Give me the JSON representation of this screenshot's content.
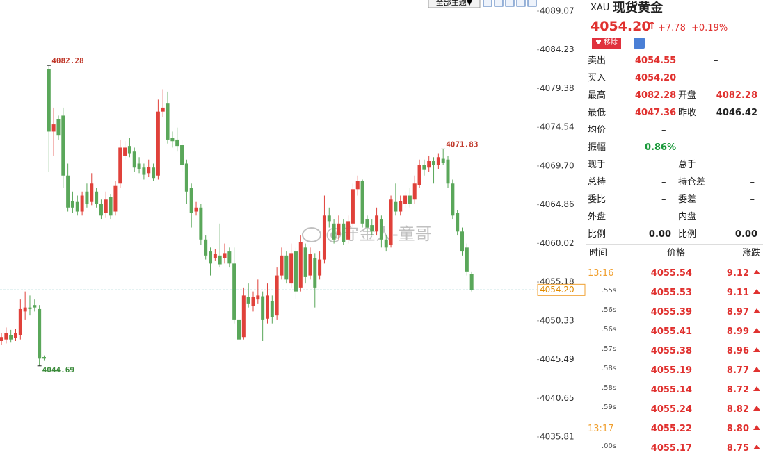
{
  "chart_data": {
    "type": "candlestick",
    "ylim": [
      4032.42,
      4090.46
    ],
    "yticks": [
      4089.07,
      4084.23,
      4079.38,
      4074.54,
      {
        "value": 4069.7,
        "label": "4069.70"
      },
      4064.86,
      4060.02,
      4055.18,
      4050.33,
      4045.49,
      4040.65,
      4035.81
    ],
    "up_color": "#e0413a",
    "down_color": "#5aa75a",
    "open": [
      4047.8,
      4048.0,
      4048.5,
      4048.2,
      4048.5,
      4051.5,
      4052.0,
      4052.3,
      4051.8,
      4045.8,
      4081.8,
      4074.0,
      4075.6,
      4076.0,
      4068.5,
      4065.3,
      4065.2,
      4064.0,
      4066.5,
      4065.2,
      4066.5,
      4065.0,
      4063.8,
      4065.8,
      4064.0,
      4067.5,
      4071.0,
      4072.2,
      4071.5,
      4070.0,
      4069.5,
      4068.8,
      4069.5,
      4068.5,
      4076.5,
      4077.5,
      4073.2,
      4073.0,
      4072.3,
      4070.0,
      4067.0,
      4064.0,
      4064.5,
      4060.5,
      4059.0,
      4058.2,
      4058.5,
      4058.2,
      4059.0,
      4057.5,
      4050.5,
      4048.3,
      4053.3,
      4052.2,
      4053.0,
      4053.4,
      4050.6,
      4052.8,
      4051.0,
      4056.0,
      4058.5,
      4055.0,
      4059.0,
      4054.5,
      4059.5,
      4056.0,
      4058.2,
      4056.0,
      4058.0,
      4063.5,
      4062.5,
      4061.0,
      4062.5,
      4060.5,
      4062.5,
      4066.8,
      4067.8,
      4063.0,
      4062.3,
      4061.5,
      4063.0,
      4060.5,
      4059.8,
      4065.2,
      4064.0,
      4065.0,
      4066.0,
      4065.5,
      4067.3,
      4069.8,
      4069.5,
      4070.3,
      4069.8,
      4070.6,
      4070.5,
      4067.5,
      4063.8,
      4061.5,
      4059.5,
      4056.2
    ],
    "close": [
      4048.3,
      4048.8,
      4048.0,
      4048.8,
      4051.8,
      4052.0,
      4051.8,
      4052.0,
      4045.6,
      4045.6,
      4074.0,
      4074.9,
      4073.5,
      4068.5,
      4064.5,
      4064.5,
      4064.0,
      4066.0,
      4065.0,
      4067.5,
      4065.0,
      4063.5,
      4065.5,
      4063.5,
      4067.2,
      4072.0,
      4072.0,
      4071.3,
      4069.5,
      4069.3,
      4068.6,
      4069.6,
      4068.2,
      4076.5,
      4077.0,
      4073.0,
      4072.8,
      4072.2,
      4069.8,
      4066.5,
      4063.8,
      4064.5,
      4060.5,
      4058.5,
      4057.5,
      4058.7,
      4057.4,
      4058.8,
      4057.5,
      4050.5,
      4048.0,
      4053.5,
      4052.5,
      4053.3,
      4053.5,
      4050.5,
      4053.5,
      4050.8,
      4056.0,
      4058.5,
      4055.5,
      4058.8,
      4054.0,
      4060.2,
      4055.8,
      4058.7,
      4054.5,
      4058.0,
      4063.5,
      4062.8,
      4060.5,
      4062.5,
      4060.2,
      4062.8,
      4066.8,
      4067.8,
      4062.5,
      4062.0,
      4061.5,
      4063.5,
      4060.5,
      4059.5,
      4065.5,
      4064.0,
      4065.3,
      4066.0,
      4065.0,
      4067.5,
      4069.8,
      4069.2,
      4070.3,
      4069.8,
      4070.8,
      4070.1,
      4067.5,
      4063.5,
      4061.5,
      4059.0,
      4056.5,
      4054.2
    ],
    "high": [
      4048.8,
      4049.5,
      4049.2,
      4049.3,
      4053.0,
      4054.0,
      4053.5,
      4053.0,
      4052.3,
      4046.0,
      4082.28,
      4077.0,
      4076.0,
      4077.0,
      4070.0,
      4066.5,
      4066.0,
      4066.5,
      4067.5,
      4068.8,
      4067.0,
      4065.5,
      4066.5,
      4066.2,
      4067.8,
      4073.0,
      4072.8,
      4073.2,
      4072.0,
      4070.8,
      4070.0,
      4070.5,
      4070.0,
      4078.0,
      4079.3,
      4079.0,
      4074.0,
      4074.5,
      4073.0,
      4070.5,
      4067.5,
      4065.2,
      4065.0,
      4061.0,
      4059.5,
      4059.3,
      4062.5,
      4060.0,
      4059.5,
      4059.5,
      4051.0,
      4054.5,
      4055.0,
      4054.0,
      4055.5,
      4054.0,
      4055.0,
      4053.5,
      4057.0,
      4059.5,
      4059.0,
      4060.0,
      4059.5,
      4061.0,
      4060.0,
      4059.5,
      4058.8,
      4059.0,
      4066.0,
      4064.5,
      4063.0,
      4063.5,
      4063.0,
      4063.5,
      4067.5,
      4068.5,
      4068.0,
      4063.5,
      4063.0,
      4064.5,
      4063.5,
      4061.0,
      4066.0,
      4067.5,
      4066.0,
      4066.5,
      4067.0,
      4068.5,
      4070.5,
      4070.5,
      4071.0,
      4070.8,
      4071.3,
      4071.83,
      4071.0,
      4068.0,
      4064.2,
      4062.0,
      4060.0,
      4056.5
    ],
    "low": [
      4047.3,
      4047.5,
      4047.6,
      4047.8,
      4048.0,
      4050.5,
      4051.0,
      4051.5,
      4044.69,
      4045.4,
      4069.0,
      4071.0,
      4073.0,
      4067.0,
      4064.0,
      4063.8,
      4063.5,
      4063.5,
      4064.5,
      4064.8,
      4064.5,
      4063.0,
      4063.2,
      4063.0,
      4063.5,
      4067.0,
      4070.5,
      4070.8,
      4069.0,
      4068.8,
      4068.0,
      4068.3,
      4067.8,
      4068.0,
      4075.8,
      4072.5,
      4072.0,
      4071.5,
      4069.0,
      4065.0,
      4062.0,
      4063.5,
      4059.8,
      4058.0,
      4056.0,
      4057.8,
      4057.0,
      4057.5,
      4057.0,
      4050.0,
      4047.5,
      4048.0,
      4052.0,
      4051.5,
      4052.5,
      4047.8,
      4050.0,
      4050.0,
      4050.5,
      4055.5,
      4055.0,
      4054.5,
      4053.0,
      4054.0,
      4055.0,
      4055.5,
      4052.0,
      4055.5,
      4057.5,
      4062.0,
      4060.0,
      4060.5,
      4059.8,
      4060.0,
      4062.0,
      4066.0,
      4062.0,
      4061.5,
      4061.0,
      4061.0,
      4059.5,
      4059.0,
      4059.5,
      4063.5,
      4063.5,
      4064.5,
      4064.5,
      4065.0,
      4067.0,
      4068.5,
      4069.0,
      4067.5,
      4069.3,
      4069.8,
      4067.0,
      4063.0,
      4061.0,
      4058.5,
      4056.0,
      4054.0
    ],
    "high_marks": [
      4082.28,
      4071.83
    ],
    "low_marks": [
      4044.69
    ],
    "last_price": {
      "value": 4054.2,
      "label": "4054.20"
    }
  },
  "toolbar": {
    "theme": "全部主题▼"
  },
  "watermark": "@守金人-童哥",
  "quote": {
    "code": "XAU",
    "name": "现货黄金",
    "price": "4054.20",
    "arrow": "↑",
    "change": "+7.78",
    "change_pct": "+0.19%",
    "remove": "移除",
    "rows": [
      [
        "卖出",
        "4054.55",
        "–"
      ],
      [
        "买入",
        "4054.20",
        "–"
      ],
      [
        "最高",
        "4082.28",
        "开盘",
        "4082.28"
      ],
      [
        "最低",
        "4047.36",
        "昨收",
        "4046.42"
      ],
      [
        "均价",
        "–"
      ],
      [
        "振幅",
        "0.86%"
      ],
      [
        "现手",
        "–",
        "总手",
        "–"
      ],
      [
        "总持",
        "–",
        "持仓差",
        "–"
      ],
      [
        "委比",
        "–",
        "委差",
        "–"
      ],
      [
        "外盘",
        "–",
        "内盘",
        "–"
      ],
      [
        "比例",
        "0.00",
        "比例",
        "0.00"
      ]
    ]
  },
  "ticks": {
    "header": [
      "时间",
      "价格",
      "涨跌"
    ],
    "rows": [
      [
        "13:16",
        "4055.54",
        "9.12"
      ],
      [
        ".55s",
        "4055.53",
        "9.11"
      ],
      [
        ".56s",
        "4055.39",
        "8.97"
      ],
      [
        ".56s",
        "4055.41",
        "8.99"
      ],
      [
        ".57s",
        "4055.38",
        "8.96"
      ],
      [
        ".58s",
        "4055.19",
        "8.77"
      ],
      [
        ".58s",
        "4055.14",
        "8.72"
      ],
      [
        ".59s",
        "4055.24",
        "8.82"
      ],
      [
        "13:17",
        "4055.22",
        "8.80"
      ],
      [
        ".00s",
        "4055.17",
        "8.75"
      ]
    ]
  }
}
